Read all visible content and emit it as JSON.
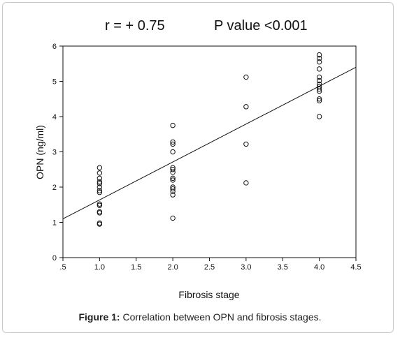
{
  "stats": {
    "correlation_text": "r = + 0.75",
    "p_value_text": "P value <0.001"
  },
  "caption": {
    "label": "Figure 1:",
    "text": " Correlation between OPN and fibrosis stages."
  },
  "chart_data": {
    "type": "scatter",
    "title": "",
    "xlabel": "Fibrosis stage",
    "ylabel": "OPN (ng/ml)",
    "xlim": [
      0.5,
      4.5
    ],
    "ylim": [
      0,
      6
    ],
    "x_ticks": [
      0.5,
      1.0,
      1.5,
      2.0,
      2.5,
      3.0,
      3.5,
      4.0,
      4.5
    ],
    "x_tick_labels": [
      ".5",
      "1.0",
      "1.5",
      "2.0",
      "2.5",
      "3.0",
      "3.5",
      "4.0",
      "4.5"
    ],
    "y_ticks": [
      0,
      1,
      2,
      3,
      4,
      5,
      6
    ],
    "y_tick_labels": [
      "0",
      "1",
      "2",
      "3",
      "4",
      "5",
      "6"
    ],
    "grid": false,
    "marker": "open-circle",
    "points": [
      {
        "x": 1,
        "y": 2.55
      },
      {
        "x": 1,
        "y": 2.4
      },
      {
        "x": 1,
        "y": 2.25
      },
      {
        "x": 1,
        "y": 2.15
      },
      {
        "x": 1,
        "y": 2.1
      },
      {
        "x": 1,
        "y": 2.0
      },
      {
        "x": 1,
        "y": 1.9
      },
      {
        "x": 1,
        "y": 1.85
      },
      {
        "x": 1,
        "y": 1.52
      },
      {
        "x": 1,
        "y": 1.48
      },
      {
        "x": 1,
        "y": 1.3
      },
      {
        "x": 1,
        "y": 1.27
      },
      {
        "x": 1,
        "y": 0.98
      },
      {
        "x": 1,
        "y": 0.95
      },
      {
        "x": 2,
        "y": 3.75
      },
      {
        "x": 2,
        "y": 3.28
      },
      {
        "x": 2,
        "y": 3.22
      },
      {
        "x": 2,
        "y": 3.0
      },
      {
        "x": 2,
        "y": 2.55
      },
      {
        "x": 2,
        "y": 2.5
      },
      {
        "x": 2,
        "y": 2.42
      },
      {
        "x": 2,
        "y": 2.25
      },
      {
        "x": 2,
        "y": 2.2
      },
      {
        "x": 2,
        "y": 2.0
      },
      {
        "x": 2,
        "y": 1.95
      },
      {
        "x": 2,
        "y": 1.88
      },
      {
        "x": 2,
        "y": 1.78
      },
      {
        "x": 2,
        "y": 1.12
      },
      {
        "x": 3,
        "y": 5.12
      },
      {
        "x": 3,
        "y": 4.28
      },
      {
        "x": 3,
        "y": 3.22
      },
      {
        "x": 3,
        "y": 2.12
      },
      {
        "x": 4,
        "y": 5.75
      },
      {
        "x": 4,
        "y": 5.65
      },
      {
        "x": 4,
        "y": 5.55
      },
      {
        "x": 4,
        "y": 5.35
      },
      {
        "x": 4,
        "y": 5.12
      },
      {
        "x": 4,
        "y": 5.02
      },
      {
        "x": 4,
        "y": 4.92
      },
      {
        "x": 4,
        "y": 4.85
      },
      {
        "x": 4,
        "y": 4.78
      },
      {
        "x": 4,
        "y": 4.72
      },
      {
        "x": 4,
        "y": 4.5
      },
      {
        "x": 4,
        "y": 4.45
      },
      {
        "x": 4,
        "y": 4.0
      }
    ],
    "fit_line": {
      "x": [
        0.5,
        4.5
      ],
      "y": [
        1.1,
        5.4
      ]
    },
    "colors": {
      "marker": "#111111",
      "line": "#111111",
      "axis": "#111111"
    }
  }
}
